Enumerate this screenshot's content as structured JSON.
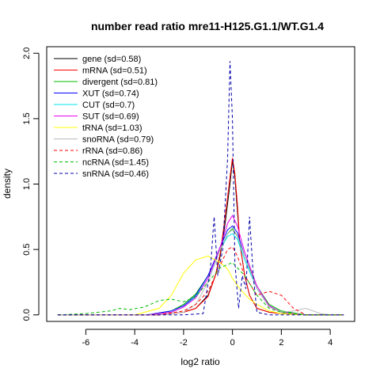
{
  "chart_data": {
    "type": "line",
    "title": "number read ratio mre11-H125.G1.1/WT.G1.4",
    "xlabel": "log2 ratio",
    "ylabel": "density",
    "xlim": [
      -7.6,
      5.0
    ],
    "ylim": [
      -0.05,
      2.05
    ],
    "x_ticks": [
      -6,
      -4,
      -2,
      0,
      2,
      4
    ],
    "y_ticks": [
      0.0,
      0.5,
      1.0,
      1.5,
      2.0
    ],
    "x_tick_labels": [
      "-6",
      "-4",
      "-2",
      "0",
      "2",
      "4"
    ],
    "y_tick_labels": [
      "0.0",
      "0.5",
      "1.0",
      "1.5",
      "2.0"
    ],
    "legend_position": "top-left",
    "grid": false,
    "series": [
      {
        "name": "gene (sd=0.58)",
        "color": "#000000",
        "dash": "solid",
        "x": [
          -3.0,
          -2.0,
          -1.5,
          -1.0,
          -0.7,
          -0.5,
          -0.3,
          -0.1,
          0.0,
          0.1,
          0.2,
          0.3,
          0.5,
          0.7,
          1.0,
          1.5,
          2.0,
          3.0
        ],
        "y": [
          0.0,
          0.02,
          0.05,
          0.15,
          0.3,
          0.45,
          0.7,
          1.0,
          1.18,
          1.05,
          0.8,
          0.55,
          0.3,
          0.15,
          0.05,
          0.02,
          0.01,
          0.0
        ]
      },
      {
        "name": "mRNA (sd=0.51)",
        "color": "#ff0000",
        "dash": "solid",
        "x": [
          -3.0,
          -2.0,
          -1.5,
          -1.0,
          -0.7,
          -0.5,
          -0.3,
          -0.1,
          0.0,
          0.1,
          0.2,
          0.3,
          0.5,
          0.7,
          1.0,
          1.5,
          2.0,
          3.0
        ],
        "y": [
          0.0,
          0.02,
          0.05,
          0.14,
          0.3,
          0.47,
          0.75,
          1.05,
          1.2,
          1.08,
          0.85,
          0.55,
          0.3,
          0.15,
          0.05,
          0.02,
          0.01,
          0.0
        ]
      },
      {
        "name": "divergent (sd=0.81)",
        "color": "#00bb00",
        "dash": "solid",
        "x": [
          -3.5,
          -2.5,
          -2.0,
          -1.5,
          -1.0,
          -0.5,
          -0.2,
          0.0,
          0.2,
          0.5,
          1.0,
          1.5,
          2.0,
          3.0
        ],
        "y": [
          0.0,
          0.03,
          0.08,
          0.16,
          0.3,
          0.5,
          0.62,
          0.66,
          0.6,
          0.45,
          0.22,
          0.08,
          0.03,
          0.0
        ]
      },
      {
        "name": "XUT (sd=0.74)",
        "color": "#0000ff",
        "dash": "solid",
        "x": [
          -3.5,
          -2.5,
          -2.0,
          -1.5,
          -1.0,
          -0.5,
          -0.2,
          0.0,
          0.2,
          0.5,
          1.0,
          1.5,
          2.0,
          3.0
        ],
        "y": [
          0.0,
          0.03,
          0.07,
          0.15,
          0.3,
          0.52,
          0.65,
          0.68,
          0.63,
          0.45,
          0.2,
          0.07,
          0.02,
          0.0
        ]
      },
      {
        "name": "CUT (sd=0.7)",
        "color": "#00e5ee",
        "dash": "solid",
        "x": [
          -3.5,
          -2.5,
          -2.0,
          -1.5,
          -1.0,
          -0.5,
          -0.2,
          0.0,
          0.2,
          0.5,
          1.0,
          1.5,
          2.0,
          3.0
        ],
        "y": [
          0.0,
          0.02,
          0.06,
          0.14,
          0.28,
          0.5,
          0.6,
          0.62,
          0.58,
          0.42,
          0.2,
          0.07,
          0.02,
          0.0
        ]
      },
      {
        "name": "SUT (sd=0.69)",
        "color": "#ee00ee",
        "dash": "solid",
        "x": [
          -3.5,
          -2.5,
          -2.0,
          -1.5,
          -1.0,
          -0.5,
          -0.2,
          0.0,
          0.2,
          0.5,
          1.0,
          1.5,
          2.0,
          3.0
        ],
        "y": [
          0.0,
          0.02,
          0.06,
          0.13,
          0.28,
          0.52,
          0.7,
          0.76,
          0.68,
          0.48,
          0.22,
          0.07,
          0.02,
          0.0
        ]
      },
      {
        "name": "tRNA (sd=1.03)",
        "color": "#ffff00",
        "dash": "solid",
        "x": [
          -4.0,
          -3.0,
          -2.5,
          -2.0,
          -1.5,
          -1.0,
          -0.5,
          -0.2,
          0.0,
          0.3,
          0.7,
          1.0,
          1.5,
          2.0,
          3.0
        ],
        "y": [
          0.0,
          0.05,
          0.15,
          0.32,
          0.42,
          0.45,
          0.4,
          0.35,
          0.28,
          0.2,
          0.12,
          0.08,
          0.03,
          0.01,
          0.0
        ]
      },
      {
        "name": "snoRNA (sd=0.79)",
        "color": "#bbbbbb",
        "dash": "solid",
        "x": [
          -3.0,
          -2.0,
          -1.5,
          -1.0,
          -0.5,
          -0.2,
          0.0,
          0.2,
          0.5,
          1.0,
          1.5,
          2.0,
          2.5,
          3.0,
          3.3,
          3.6,
          4.0
        ],
        "y": [
          0.0,
          0.02,
          0.08,
          0.25,
          0.5,
          0.62,
          0.65,
          0.6,
          0.45,
          0.2,
          0.06,
          0.02,
          0.03,
          0.05,
          0.03,
          0.01,
          0.0
        ]
      },
      {
        "name": "rRNA (sd=0.86)",
        "color": "#ff0000",
        "dash": "dashed",
        "x": [
          -3.0,
          -2.0,
          -1.5,
          -1.0,
          -0.5,
          -0.2,
          0.0,
          0.2,
          0.5,
          1.0,
          1.5,
          2.0,
          2.5,
          3.0
        ],
        "y": [
          0.0,
          0.03,
          0.08,
          0.18,
          0.38,
          0.5,
          0.52,
          0.45,
          0.3,
          0.15,
          0.18,
          0.15,
          0.05,
          0.0
        ]
      },
      {
        "name": "ncRNA (sd=1.45)",
        "color": "#00bb00",
        "dash": "dashed",
        "x": [
          -7.0,
          -6.0,
          -5.0,
          -4.6,
          -4.2,
          -3.6,
          -3.0,
          -2.5,
          -2.0,
          -1.5,
          -1.0,
          -0.5,
          0.0,
          0.5,
          1.0,
          1.5,
          2.0,
          3.0
        ],
        "y": [
          0.0,
          0.01,
          0.03,
          0.05,
          0.04,
          0.06,
          0.11,
          0.12,
          0.1,
          0.14,
          0.25,
          0.36,
          0.4,
          0.3,
          0.15,
          0.05,
          0.02,
          0.0
        ]
      },
      {
        "name": "snRNA (sd=0.46)",
        "color": "#0000aa",
        "dash": "dashed",
        "x": [
          -2.0,
          -1.2,
          -0.9,
          -0.75,
          -0.6,
          -0.4,
          -0.2,
          -0.1,
          0.0,
          0.1,
          0.25,
          0.4,
          0.55,
          0.7,
          0.85,
          1.0,
          1.5,
          2.0
        ],
        "y": [
          0.0,
          0.01,
          0.35,
          0.75,
          0.3,
          0.5,
          1.2,
          1.94,
          1.5,
          0.4,
          0.05,
          0.3,
          0.2,
          0.75,
          0.3,
          0.02,
          0.0,
          0.0
        ]
      }
    ]
  }
}
